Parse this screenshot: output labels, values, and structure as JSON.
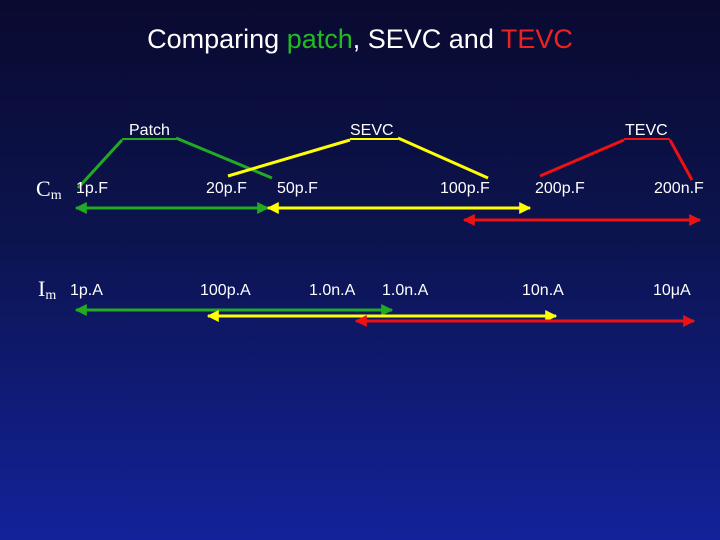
{
  "title": {
    "prefix": "Comparing ",
    "patch": "patch",
    "comma": ",",
    "mid": " SEVC and ",
    "tevc": "TEVC"
  },
  "methods": {
    "patch": "Patch",
    "sevc": "SEVC",
    "tevc": "TEVC"
  },
  "rows": {
    "cm": {
      "symbol": "C",
      "sub": "m"
    },
    "im": {
      "symbol": "I",
      "sub": "m"
    }
  },
  "cm_values": [
    "1p.F",
    "20p.F",
    "50p.F",
    "100p.F",
    "200p.F",
    "200n.F"
  ],
  "im_values": [
    "1p.A",
    "100p.A",
    "1.0n.A",
    "1.0n.A",
    "10n.A",
    "10μA"
  ],
  "colors": {
    "patch": "#22aa22",
    "sevc": "#ffff00",
    "tevc": "#ee1111",
    "title_patch": "#22bb22",
    "title_tevc": "#ee2222"
  }
}
